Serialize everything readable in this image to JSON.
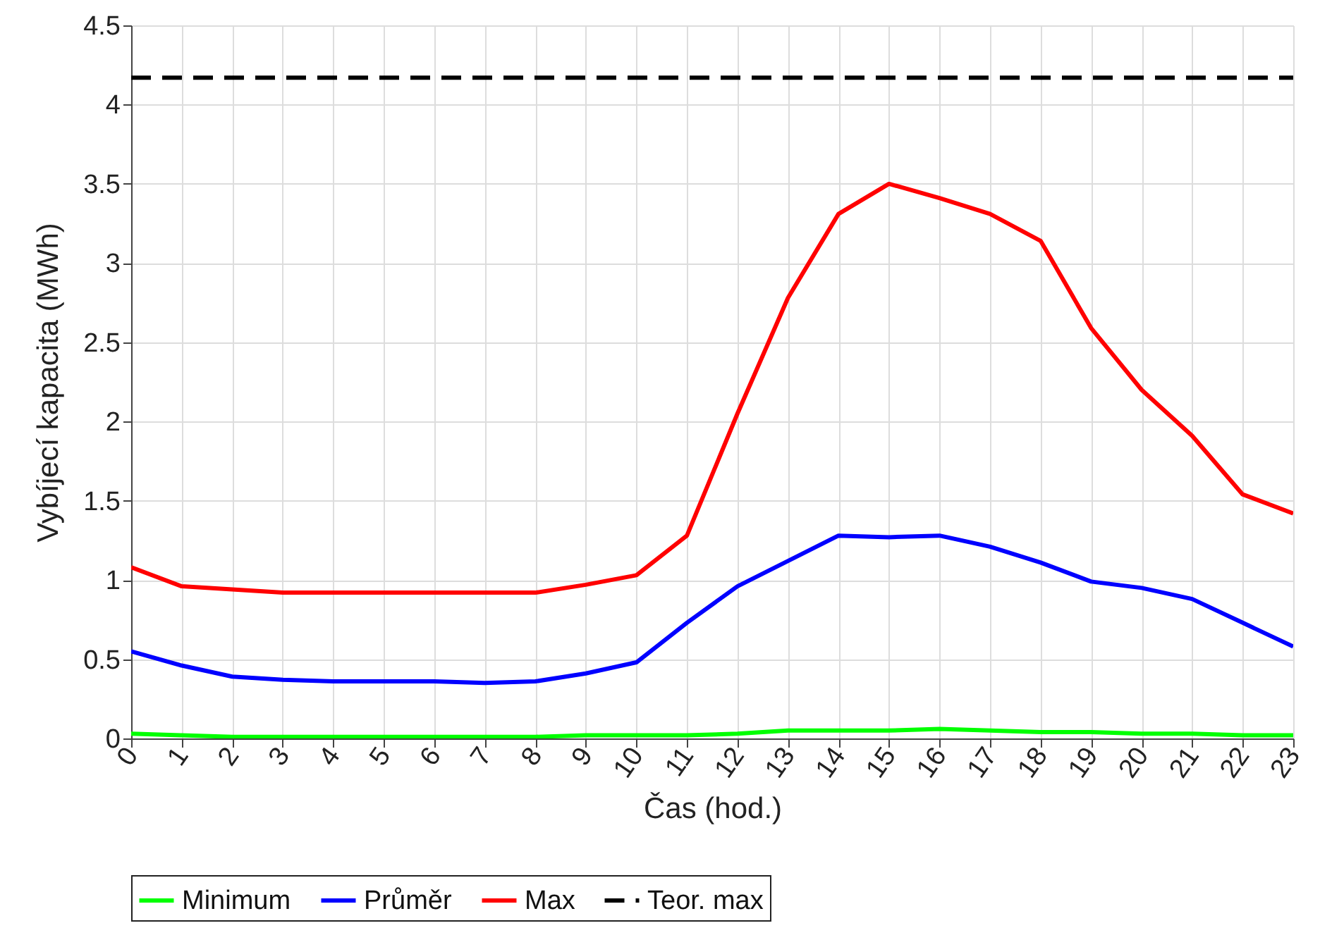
{
  "chart_data": {
    "type": "line",
    "xlabel": "Čas (hod.)",
    "ylabel": "Vybíjecí kapacita (MWh)",
    "x": [
      0,
      1,
      2,
      3,
      4,
      5,
      6,
      7,
      8,
      9,
      10,
      11,
      12,
      13,
      14,
      15,
      16,
      17,
      18,
      19,
      20,
      21,
      22,
      23
    ],
    "xlim": [
      0,
      23
    ],
    "xticks": [
      0,
      1,
      2,
      3,
      4,
      5,
      6,
      7,
      8,
      9,
      10,
      11,
      12,
      13,
      14,
      15,
      16,
      17,
      18,
      19,
      20,
      21,
      22,
      23
    ],
    "ylim": [
      0,
      4.5
    ],
    "yticks": [
      0,
      0.5,
      1,
      1.5,
      2,
      2.5,
      3,
      3.5,
      4,
      4.5
    ],
    "grid": true,
    "legend": "bottom",
    "marker": "none",
    "series": [
      {
        "name": "Minimum",
        "color": "#00ff00",
        "values": [
          0.03,
          0.02,
          0.01,
          0.01,
          0.01,
          0.01,
          0.01,
          0.01,
          0.01,
          0.02,
          0.02,
          0.02,
          0.03,
          0.05,
          0.05,
          0.05,
          0.06,
          0.05,
          0.04,
          0.04,
          0.03,
          0.03,
          0.02,
          0.02
        ]
      },
      {
        "name": "Průměr",
        "color": "#0000ff",
        "values": [
          0.55,
          0.46,
          0.39,
          0.37,
          0.36,
          0.36,
          0.36,
          0.35,
          0.36,
          0.41,
          0.48,
          0.73,
          0.96,
          1.12,
          1.28,
          1.27,
          1.28,
          1.21,
          1.11,
          0.99,
          0.95,
          0.88,
          0.73,
          0.58
        ]
      },
      {
        "name": "Max",
        "color": "#ff0000",
        "values": [
          1.08,
          0.96,
          0.94,
          0.92,
          0.92,
          0.92,
          0.92,
          0.92,
          0.92,
          0.97,
          1.03,
          1.28,
          2.05,
          2.78,
          3.31,
          3.5,
          3.41,
          3.31,
          3.14,
          2.59,
          2.2,
          1.91,
          1.54,
          1.42
        ]
      },
      {
        "name": "Teor. max",
        "color": "#000000",
        "line_style": "dashed",
        "values": [
          4.17,
          4.17,
          4.17,
          4.17,
          4.17,
          4.17,
          4.17,
          4.17,
          4.17,
          4.17,
          4.17,
          4.17,
          4.17,
          4.17,
          4.17,
          4.17,
          4.17,
          4.17,
          4.17,
          4.17,
          4.17,
          4.17,
          4.17,
          4.17
        ]
      }
    ]
  }
}
